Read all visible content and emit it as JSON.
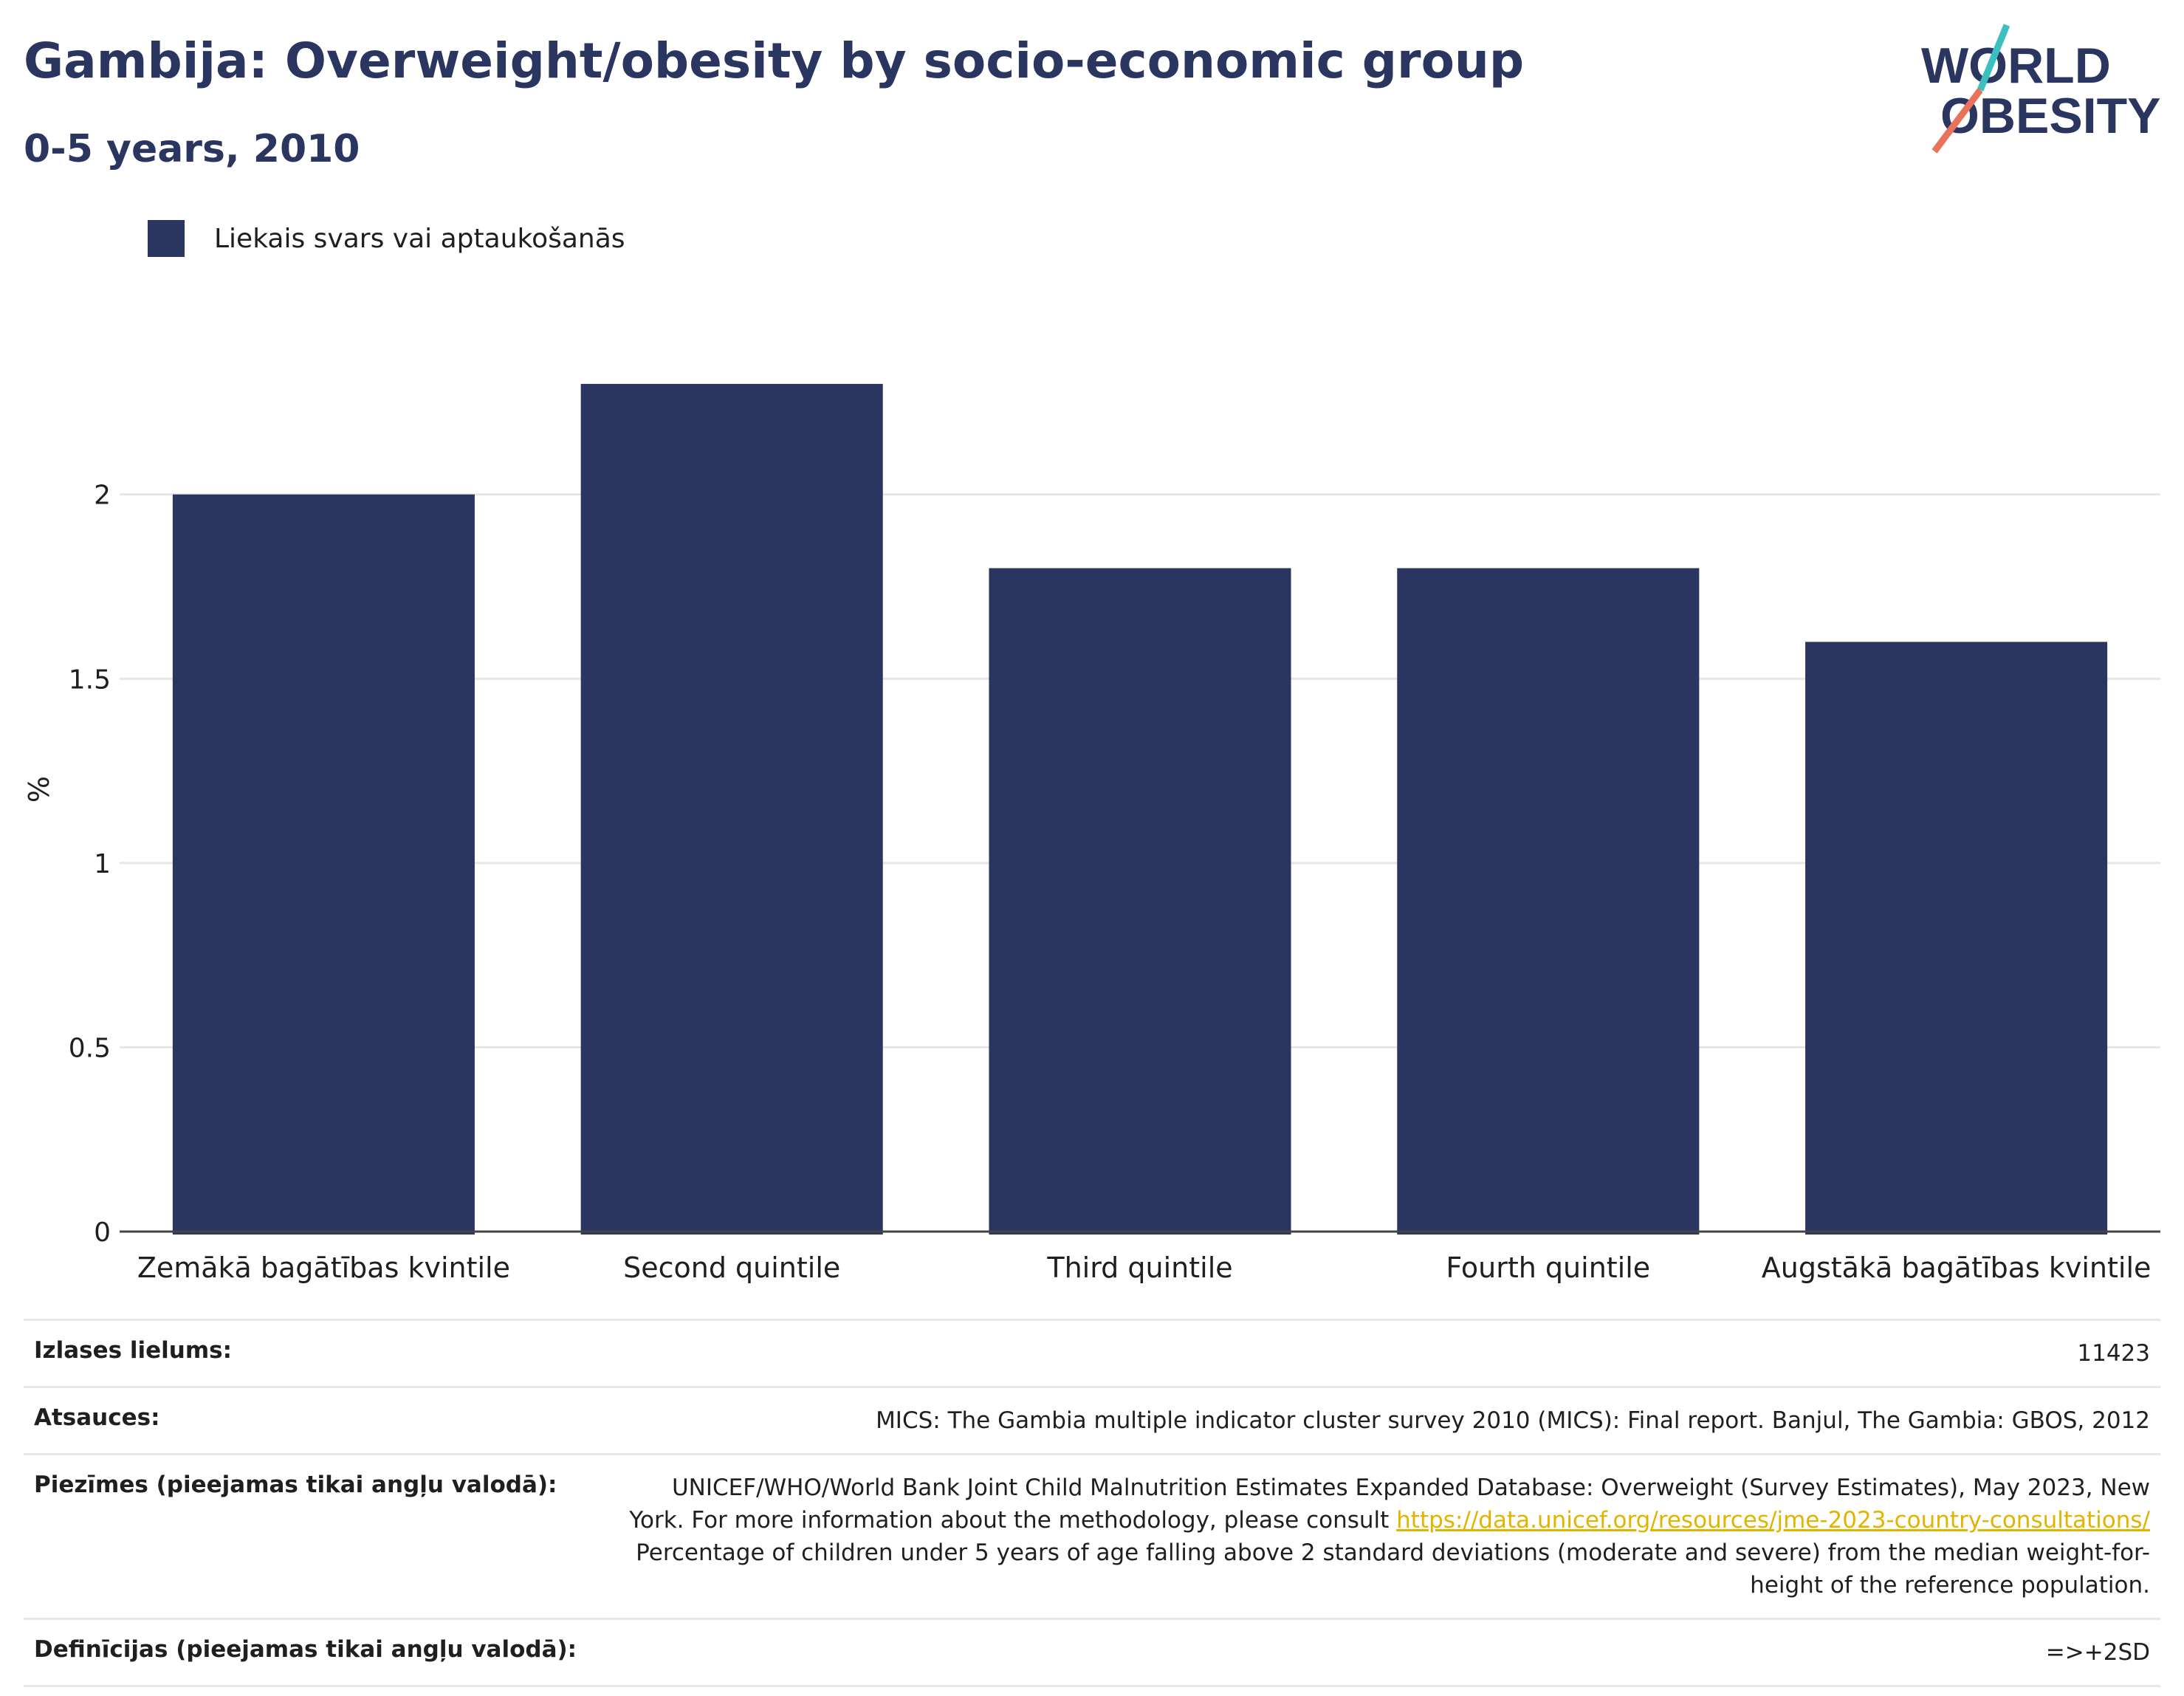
{
  "header": {
    "title": "Gambija: Overweight/obesity by socio-economic group",
    "subtitle": "0-5 years, 2010"
  },
  "logo": {
    "line1": "WORLD",
    "line2": "OBESITY",
    "colors": {
      "text": "#2a3560",
      "slash_top": "#3bbfc1",
      "slash_bottom": "#e8735a"
    }
  },
  "legend": {
    "label": "Liekais svars vai aptaukošanās",
    "color": "#2a3560"
  },
  "chart_data": {
    "type": "bar",
    "categories": [
      "Zemākā bagātības kvintile",
      "Second quintile",
      "Third quintile",
      "Fourth quintile",
      "Augstākā bagātības kvintile"
    ],
    "series": [
      {
        "name": "Liekais svars vai aptaukošanās",
        "values": [
          2.0,
          2.3,
          1.8,
          1.8,
          1.6
        ],
        "color": "#2a3560"
      }
    ],
    "ylabel": "%",
    "ylim": [
      0,
      2.4
    ],
    "yticks": [
      0,
      0.5,
      1,
      1.5,
      2
    ],
    "ytick_labels": [
      "0",
      "0.5",
      "1",
      "1.5",
      "2"
    ],
    "grid": true,
    "legend_position": "top-left"
  },
  "info": {
    "sample_label": "Izlases lielums:",
    "sample_value": "11423",
    "sources_label": "Atsauces:",
    "sources_value": "MICS: The Gambia multiple indicator cluster survey 2010 (MICS): Final report. Banjul, The Gambia: GBOS, 2012",
    "notes_label": "Piezīmes (pieejamas tikai angļu valodā):",
    "notes_text1": "UNICEF/WHO/World Bank Joint Child Malnutrition Estimates Expanded Database: Overweight (Survey Estimates), May 2023, New York. For more information about the methodology, please consult ",
    "notes_link": "https://data.unicef.org/resources/jme-2023-country-consultations/",
    "notes_text2": " Percentage of children under 5 years of age falling above 2 standard deviations (moderate and severe) from the median weight-for-height of the reference population.",
    "definitions_label": "Definīcijas (pieejamas tikai angļu valodā):",
    "definitions_value": "=>+2SD"
  }
}
